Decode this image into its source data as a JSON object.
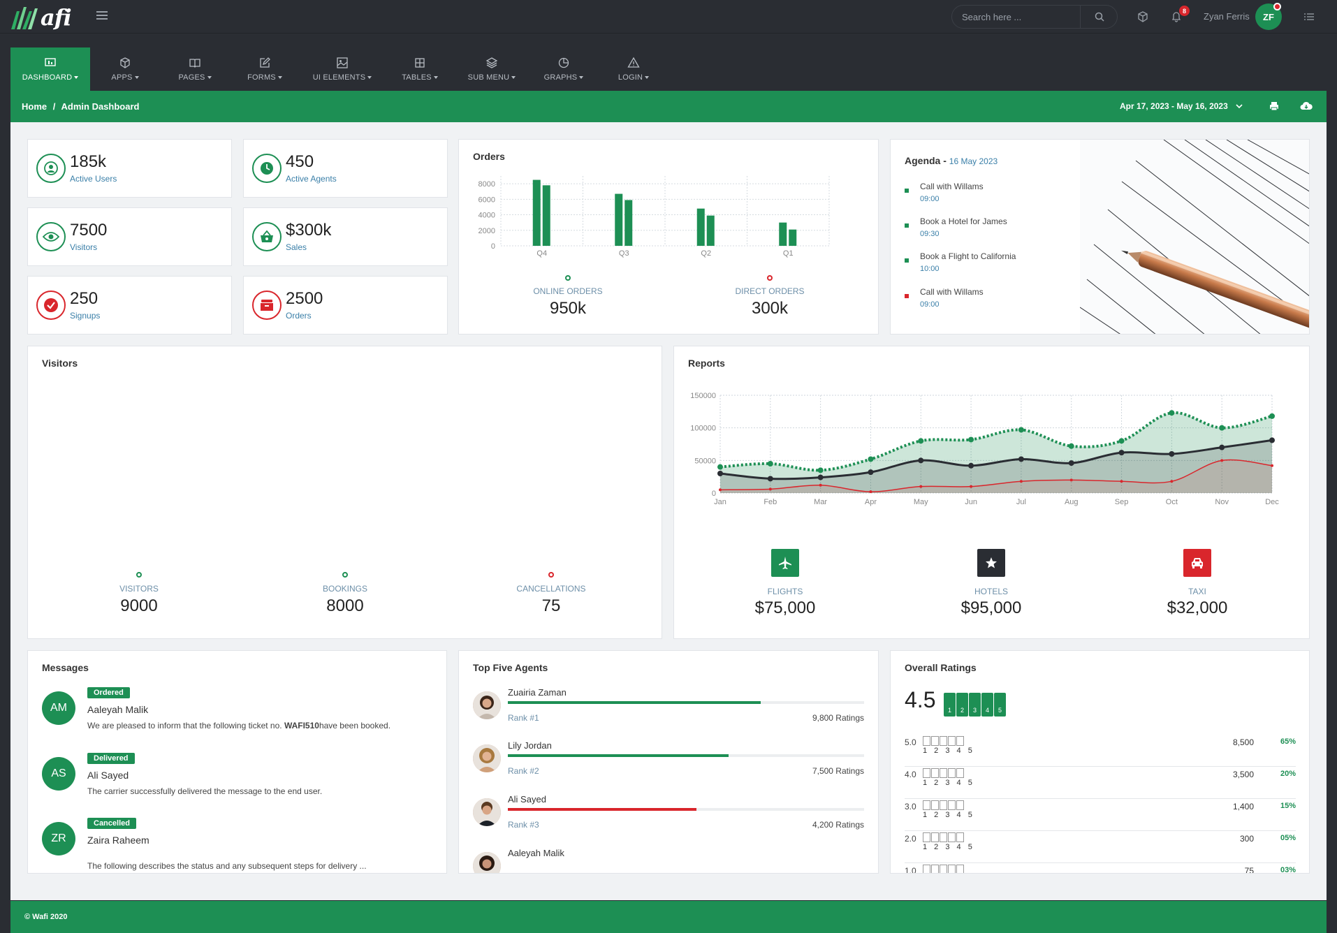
{
  "app": {
    "logo_text": "afi",
    "brand_color": "#1d8f54"
  },
  "topbar": {
    "search_placeholder": "Search here ...",
    "notifications_count": "8",
    "user_name": "Zyan Ferris",
    "user_initials": "ZF",
    "icons": [
      "hamburger-icon",
      "search-icon",
      "box-icon",
      "bell-icon",
      "list-icon"
    ]
  },
  "nav": [
    {
      "label": "DASHBOARD",
      "icon": "dashboard-icon",
      "active": true
    },
    {
      "label": "APPS",
      "icon": "box-icon"
    },
    {
      "label": "PAGES",
      "icon": "book-icon"
    },
    {
      "label": "FORMS",
      "icon": "edit-icon"
    },
    {
      "label": "UI ELEMENTS",
      "icon": "image-icon"
    },
    {
      "label": "TABLES",
      "icon": "grid-icon"
    },
    {
      "label": "SUB MENU",
      "icon": "layers-icon"
    },
    {
      "label": "GRAPHS",
      "icon": "pie-chart-icon"
    },
    {
      "label": "LOGIN",
      "icon": "alert-triangle-icon"
    }
  ],
  "breadcrumb": {
    "home": "Home",
    "separator": "/",
    "current": "Admin Dashboard"
  },
  "date_range": "Apr 17, 2023 - May 16, 2023",
  "stats": [
    {
      "value": "185k",
      "label": "Active Users",
      "icon": "user-icon",
      "color": "#1d8f54"
    },
    {
      "value": "450",
      "label": "Active Agents",
      "icon": "clock-icon",
      "color": "#1d8f54"
    },
    {
      "value": "7500",
      "label": "Visitors",
      "icon": "eye-icon",
      "color": "#1d8f54"
    },
    {
      "value": "$300k",
      "label": "Sales",
      "icon": "basket-icon",
      "color": "#1d8f54"
    },
    {
      "value": "250",
      "label": "Signups",
      "icon": "check-icon",
      "color": "#d9262c"
    },
    {
      "value": "2500",
      "label": "Orders",
      "icon": "inbox-icon",
      "color": "#d9262c"
    }
  ],
  "orders": {
    "title": "Orders",
    "kpis": [
      {
        "label": "ONLINE ORDERS",
        "value": "950k",
        "color": "#1d8f54"
      },
      {
        "label": "DIRECT ORDERS",
        "value": "300k",
        "color": "#d9262c"
      }
    ]
  },
  "agenda": {
    "title": "Agenda -",
    "date": "16 May 2023",
    "items": [
      {
        "text": "Call with Willams",
        "time": "09:00",
        "color": "#1d8f54"
      },
      {
        "text": "Book a Hotel for James",
        "time": "09:30",
        "color": "#1d8f54"
      },
      {
        "text": "Book a Flight to California",
        "time": "10:00",
        "color": "#1d8f54"
      },
      {
        "text": "Call with Willams",
        "time": "09:00",
        "color": "#d9262c"
      }
    ]
  },
  "visitors": {
    "title": "Visitors",
    "kpis": [
      {
        "label": "VISITORS",
        "value": "9000",
        "color": "#1d8f54"
      },
      {
        "label": "BOOKINGS",
        "value": "8000",
        "color": "#1d8f54"
      },
      {
        "label": "CANCELLATIONS",
        "value": "75",
        "color": "#d9262c"
      }
    ]
  },
  "reports": {
    "title": "Reports",
    "kpis": [
      {
        "label": "FLIGHTS",
        "value": "$75,000",
        "icon": "plane-icon",
        "color": "#1d8f54"
      },
      {
        "label": "HOTELS",
        "value": "$95,000",
        "icon": "star-icon",
        "color": "#2a2d33"
      },
      {
        "label": "TAXI",
        "value": "$32,000",
        "icon": "car-icon",
        "color": "#d9262c"
      }
    ]
  },
  "messages": {
    "title": "Messages",
    "items": [
      {
        "initials": "AM",
        "tag": "Ordered",
        "name": "Aaleyah Malik",
        "text_before": "We are pleased to inform that the following ticket no. ",
        "ticket": "WAFI510",
        "text_after": "have been booked."
      },
      {
        "initials": "AS",
        "tag": "Delivered",
        "name": "Ali Sayed",
        "text_before": "The carrier successfully delivered the message to the end user.",
        "ticket": "",
        "text_after": ""
      },
      {
        "initials": "ZR",
        "tag": "Cancelled",
        "name": "Zaira Raheem",
        "text_before": "The following describes the status and any subsequent steps for delivery ...",
        "ticket": "",
        "text_after": ""
      }
    ]
  },
  "agents": {
    "title": "Top Five Agents",
    "items": [
      {
        "name": "Zuairia Zaman",
        "rank": "Rank #1",
        "ratings": "9,800 Ratings",
        "progress": 0.71,
        "color": "#1d8f54"
      },
      {
        "name": "Lily Jordan",
        "rank": "Rank #2",
        "ratings": "7,500 Ratings",
        "progress": 0.62,
        "color": "#1d8f54"
      },
      {
        "name": "Ali Sayed",
        "rank": "Rank #3",
        "ratings": "4,200 Ratings",
        "progress": 0.53,
        "color": "#d9262c"
      },
      {
        "name": "Aaleyah Malik",
        "rank": "",
        "ratings": "",
        "progress": 0,
        "color": "#1d8f54"
      }
    ]
  },
  "ratings": {
    "title": "Overall Ratings",
    "overall": "4.5",
    "star_numbers": "1 2 3 4 5",
    "rows": [
      {
        "rating": "5.0",
        "count": "8,500",
        "pct": "65%"
      },
      {
        "rating": "4.0",
        "count": "3,500",
        "pct": "20%"
      },
      {
        "rating": "3.0",
        "count": "1,400",
        "pct": "15%"
      },
      {
        "rating": "2.0",
        "count": "300",
        "pct": "05%"
      },
      {
        "rating": "1.0",
        "count": "75",
        "pct": "03%"
      }
    ]
  },
  "footer": "© Wafi 2020",
  "chart_data": [
    {
      "type": "bar",
      "categories": [
        "Q4",
        "Q3",
        "Q2",
        "Q1"
      ],
      "series": [
        {
          "values": [
            8500,
            6700,
            4800,
            3000
          ],
          "color": "#1d8f54"
        },
        {
          "values": [
            7800,
            5900,
            3900,
            2100
          ],
          "color": "#1d8f54"
        }
      ],
      "yticks": [
        "8000",
        "6000",
        "4000",
        "2000",
        "0"
      ],
      "ylim": [
        0,
        9000
      ]
    },
    {
      "type": "area",
      "categories": [
        "Jan",
        "Feb",
        "Mar",
        "Apr",
        "May",
        "Jun",
        "Jul",
        "Aug",
        "Sep",
        "Oct",
        "Nov",
        "Dec"
      ],
      "yticks": [
        "150000",
        "100000",
        "50000",
        "0"
      ],
      "ylim": [
        0,
        150000
      ],
      "series": [
        {
          "color": "#1d8f54",
          "values": [
            40000,
            45000,
            35000,
            52000,
            80000,
            82000,
            97000,
            72000,
            80000,
            123000,
            100000,
            118000
          ]
        },
        {
          "color": "#2a2d33",
          "values": [
            30000,
            22000,
            24000,
            32000,
            50000,
            42000,
            52000,
            46000,
            62000,
            60000,
            70000,
            81000
          ]
        },
        {
          "color": "#d9262c",
          "values": [
            5000,
            6000,
            12000,
            2000,
            10000,
            10000,
            18000,
            20000,
            18000,
            18000,
            50000,
            42000
          ]
        }
      ]
    }
  ]
}
